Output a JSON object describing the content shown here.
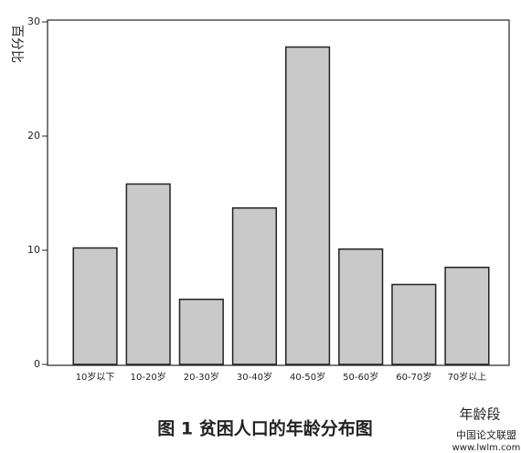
{
  "chart_data": {
    "type": "bar",
    "title": "图 1 贫困人口的年龄分布图",
    "y_label": "百分比",
    "x_label": "年龄段",
    "categories": [
      "10岁以下",
      "10-20岁",
      "20-30岁",
      "30-40岁",
      "40-50岁",
      "50-60岁",
      "60-70岁",
      "70岁以上"
    ],
    "values": [
      10.2,
      15.8,
      5.7,
      13.7,
      27.8,
      10.1,
      7.0,
      8.5
    ],
    "color": "#c9c9c9",
    "ylim": [
      0,
      30
    ],
    "yticks": [
      0,
      10,
      20,
      30
    ],
    "grid": false
  },
  "watermark": {
    "line1": "中国论文联盟",
    "line2": "www.lwlm.com"
  }
}
